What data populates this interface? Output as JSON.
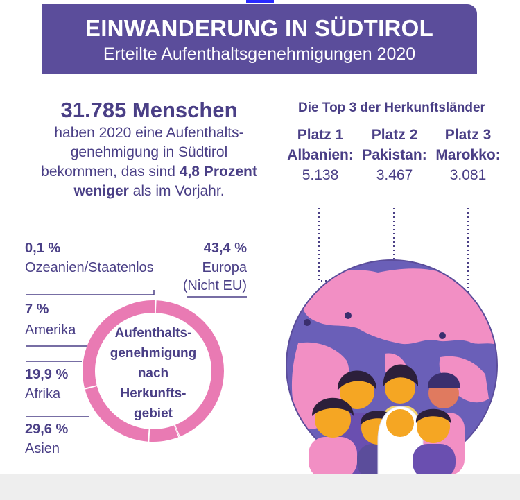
{
  "header": {
    "title": "EINWANDERUNG IN SÜDTIROL",
    "subtitle": "Erteilte Aufenthaltsgenehmigungen 2020"
  },
  "summary": {
    "headline": "31.785 Menschen",
    "line1": "haben 2020 eine Aufenthalts-",
    "line2": "genehmigung in Südtirol",
    "line3_pre": "bekommen, das sind ",
    "line3_bold": "4,8 Prozent",
    "line4_bold": "weniger",
    "line4_post": " als im Vorjahr."
  },
  "top3": {
    "title": "Die Top 3 der Herkunftsländer",
    "items": [
      {
        "rank": "Platz 1",
        "country": "Albanien:",
        "value": "5.138"
      },
      {
        "rank": "Platz 2",
        "country": "Pakistan:",
        "value": "3.467"
      },
      {
        "rank": "Platz 3",
        "country": "Marokko:",
        "value": "3.081"
      }
    ]
  },
  "chart_data": {
    "type": "pie",
    "donut": true,
    "center_label": [
      "Aufenthalts-",
      "genehmigung",
      "nach",
      "Herkunfts-",
      "gebiet"
    ],
    "slices": [
      {
        "value": 43.4,
        "value_label": "43,4 %",
        "label": [
          "Europa",
          "(Nicht EU)"
        ]
      },
      {
        "value": 0.1,
        "value_label": "0,1 %",
        "label": [
          "Ozeanien/Staatenlos"
        ]
      },
      {
        "value": 7,
        "value_label": "7 %",
        "label": [
          "Amerika"
        ]
      },
      {
        "value": 19.9,
        "value_label": "19,9 %",
        "label": [
          "Afrika"
        ]
      },
      {
        "value": 29.6,
        "value_label": "29,6 %",
        "label": [
          "Asien"
        ]
      }
    ],
    "color": "#e97ab3"
  },
  "colors": {
    "accent": "#5b4d9b",
    "text": "#4a3f86",
    "pink": "#e97ab3",
    "ocean": "#6a5fb8"
  },
  "illustration": {
    "name": "globe-with-people-illustration"
  }
}
